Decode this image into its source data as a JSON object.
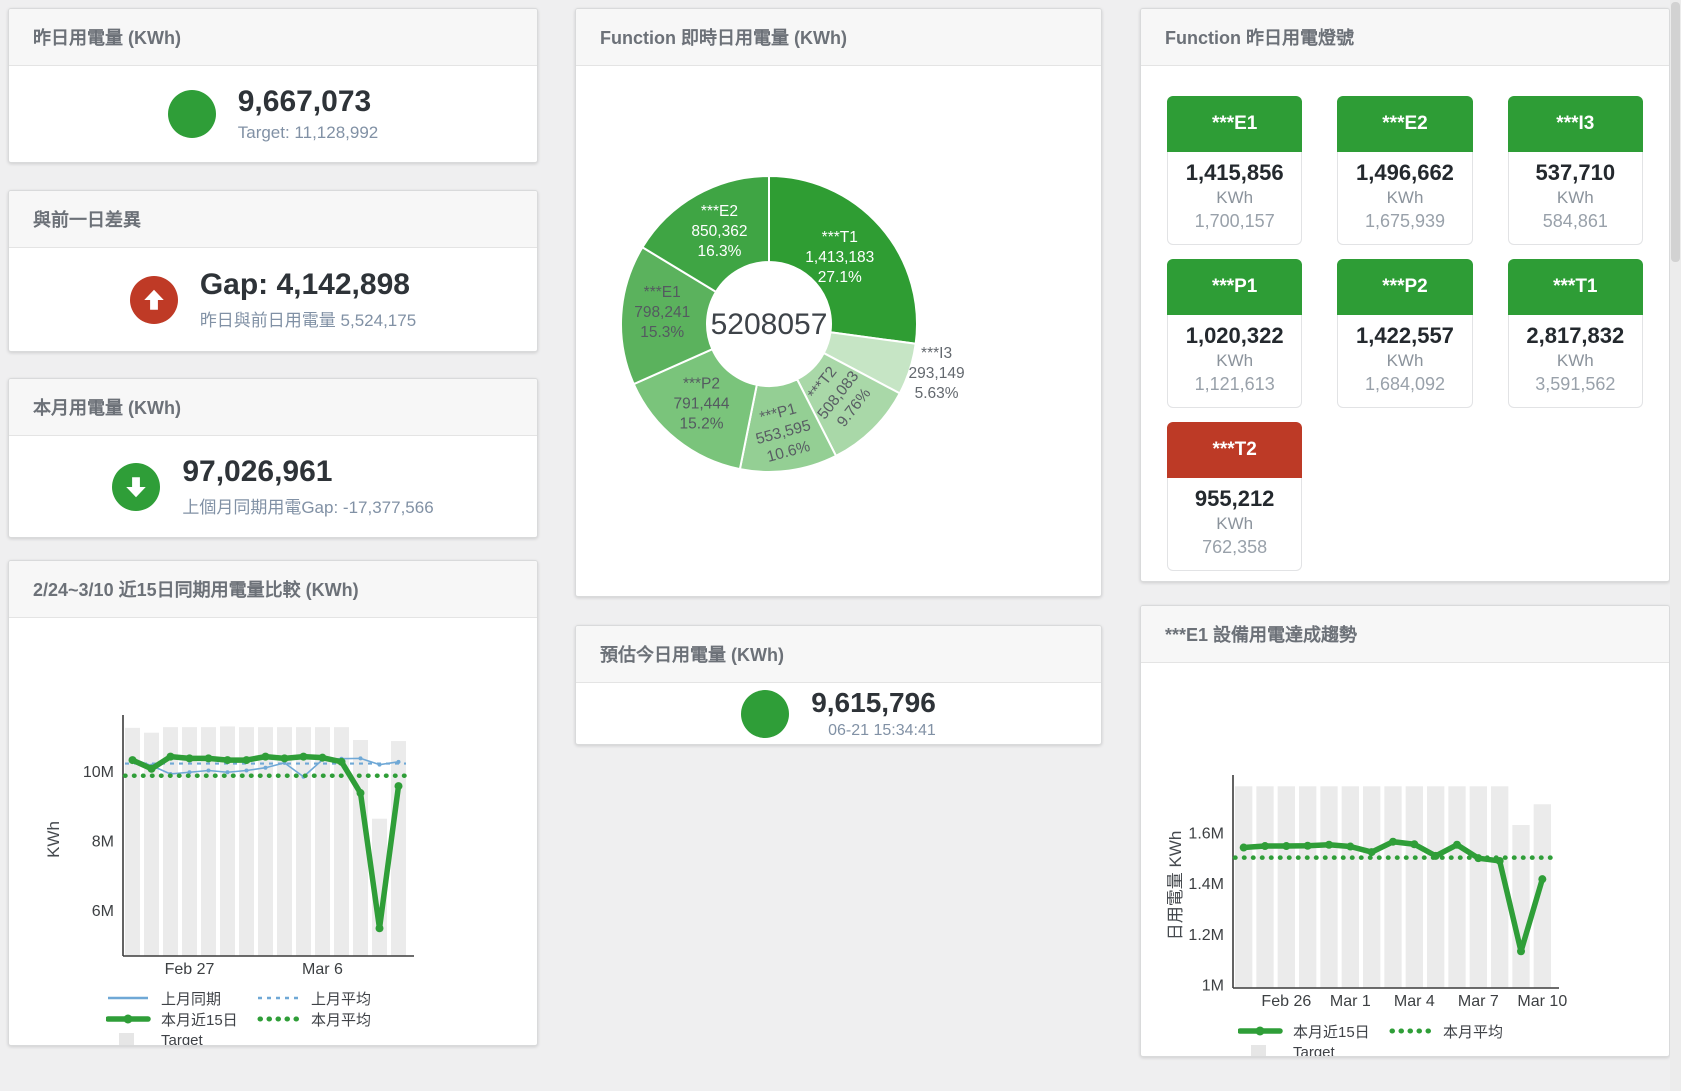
{
  "colors": {
    "green": "#2f9e38",
    "red": "#bf3a26",
    "blue": "#6fa8d6",
    "target_bar": "#ebebeb",
    "legend_square": "#e6e6e6",
    "tile_green": "#2e9d36",
    "tile_red": "#bd3a26",
    "axis_text": "#3d4043"
  },
  "panels": {
    "yesterday": {
      "title": "昨日用電量 (KWh)",
      "value": "9,667,073",
      "target": "Target: 11,128,992"
    },
    "gap": {
      "title": "與前一日差異",
      "value": "Gap: 4,142,898",
      "sub": "昨日與前日用電量 5,524,175",
      "direction": "up"
    },
    "month": {
      "title": "本月用電量 (KWh)",
      "value": "97,026,961",
      "sub": "上個月同期用電Gap: -17,377,566",
      "direction": "down"
    },
    "estimate": {
      "title": "預估今日用電量 (KWh)",
      "value": "9,615,796",
      "sub": "06-21 15:34:41"
    },
    "lights": {
      "title": "Function 昨日用電燈號",
      "tiles": [
        {
          "id": "E1",
          "label": "***E1",
          "value": "1,415,856",
          "unit": "KWh",
          "target": "1,700,157",
          "status": "green"
        },
        {
          "id": "E2",
          "label": "***E2",
          "value": "1,496,662",
          "unit": "KWh",
          "target": "1,675,939",
          "status": "green"
        },
        {
          "id": "I3",
          "label": "***I3",
          "value": "537,710",
          "unit": "KWh",
          "target": "584,861",
          "status": "green"
        },
        {
          "id": "P1",
          "label": "***P1",
          "value": "1,020,322",
          "unit": "KWh",
          "target": "1,121,613",
          "status": "green"
        },
        {
          "id": "P2",
          "label": "***P2",
          "value": "1,422,557",
          "unit": "KWh",
          "target": "1,684,092",
          "status": "green"
        },
        {
          "id": "T1",
          "label": "***T1",
          "value": "2,817,832",
          "unit": "KWh",
          "target": "3,591,562",
          "status": "green"
        },
        {
          "id": "T2",
          "label": "***T2",
          "value": "955,212",
          "unit": "KWh",
          "target": "762,358",
          "status": "red"
        }
      ]
    }
  },
  "chart_data": [
    {
      "type": "pie",
      "title": "Function 即時日用電量 (KWh)",
      "center_total": "5208057",
      "slices": [
        {
          "id": "T1",
          "label": "***T1",
          "value": 1413183,
          "display": "1,413,183",
          "pct": "27.1%",
          "color": "#2f9d33",
          "text": "#ffffff",
          "rot": 0,
          "placement": "inside"
        },
        {
          "id": "I3",
          "label": "***I3",
          "value": 293149,
          "display": "293,149",
          "pct": "5.63%",
          "color": "#c6e5c5",
          "text": "#63686e",
          "rot": 0,
          "placement": "outside"
        },
        {
          "id": "T2",
          "label": "***T2",
          "value": 508083,
          "display": "508,083",
          "pct": "9.76%",
          "color": "#a9d8a8",
          "text": "#585d63",
          "rot": -52,
          "placement": "inside"
        },
        {
          "id": "P1",
          "label": "***P1",
          "value": 553595,
          "display": "553,595",
          "pct": "10.6%",
          "color": "#94cf94",
          "text": "#585d63",
          "rot": -15,
          "placement": "inside"
        },
        {
          "id": "P2",
          "label": "***P2",
          "value": 791444,
          "display": "791,444",
          "pct": "15.2%",
          "color": "#7ac47b",
          "text": "#545a60",
          "rot": 0,
          "placement": "inside"
        },
        {
          "id": "E1",
          "label": "***E1",
          "value": 798241,
          "display": "798,241",
          "pct": "15.3%",
          "color": "#5bb25d",
          "text": "#545a60",
          "rot": 0,
          "placement": "inside"
        },
        {
          "id": "E2",
          "label": "***E2",
          "value": 850362,
          "display": "850,362",
          "pct": "16.3%",
          "color": "#3fa544",
          "text": "#ffffff",
          "rot": 0,
          "placement": "inside"
        }
      ]
    },
    {
      "type": "line",
      "title": "2/24~3/10 近15日同期用電量比較 (KWh)",
      "ylabel": "KWh",
      "y_unit": "M",
      "n": 15,
      "ylim": [
        4.7,
        11.42
      ],
      "yticks": [
        {
          "v": 6,
          "label": "6M"
        },
        {
          "v": 8,
          "label": "8M"
        },
        {
          "v": 10,
          "label": "10M"
        }
      ],
      "xticks": [
        {
          "i": 3,
          "label": "Feb 27"
        },
        {
          "i": 10,
          "label": "Mar 6"
        }
      ],
      "target": [
        11.28,
        11.14,
        11.3,
        11.3,
        11.3,
        11.32,
        11.3,
        11.3,
        11.3,
        11.3,
        11.3,
        11.3,
        10.93,
        8.66,
        10.9
      ],
      "last_month": [
        10.39,
        10.19,
        9.95,
        10.0,
        10.05,
        10.0,
        10.05,
        10.13,
        10.27,
        9.87,
        10.36,
        10.39,
        10.4,
        10.22,
        10.3
      ],
      "last_month_avg": 10.25,
      "this_month": [
        10.35,
        10.1,
        10.45,
        10.4,
        10.4,
        10.35,
        10.35,
        10.45,
        10.4,
        10.45,
        10.42,
        10.3,
        9.4,
        5.5,
        9.6
      ],
      "this_month_avg": 9.9,
      "legend": [
        [
          {
            "label": "上月同期",
            "swatch": "blue-line"
          },
          {
            "label": "上月平均",
            "swatch": "blue-dot"
          }
        ],
        [
          {
            "label": "本月近15日",
            "swatch": "green-thick"
          },
          {
            "label": "本月平均",
            "swatch": "green-dot"
          }
        ],
        [
          {
            "label": "Target",
            "swatch": "gray-square"
          }
        ]
      ]
    },
    {
      "type": "line",
      "title": "***E1 設備用電達成趨勢",
      "ylabel": "日用電量 KWh",
      "y_unit": "M",
      "n": 15,
      "ylim": [
        0.99,
        1.8
      ],
      "yticks": [
        {
          "v": 1,
          "label": "1M"
        },
        {
          "v": 1.2,
          "label": "1.2M"
        },
        {
          "v": 1.4,
          "label": "1.4M"
        },
        {
          "v": 1.6,
          "label": "1.6M"
        }
      ],
      "xticks": [
        {
          "i": 2,
          "label": "Feb 26"
        },
        {
          "i": 5,
          "label": "Mar 1"
        },
        {
          "i": 8,
          "label": "Mar 4"
        },
        {
          "i": 11,
          "label": "Mar 7"
        },
        {
          "i": 14,
          "label": "Mar 10"
        }
      ],
      "target": [
        1.787,
        1.787,
        1.787,
        1.787,
        1.787,
        1.787,
        1.787,
        1.787,
        1.787,
        1.787,
        1.787,
        1.787,
        1.787,
        1.634,
        1.716
      ],
      "this_month": [
        1.545,
        1.551,
        1.551,
        1.552,
        1.556,
        1.549,
        1.527,
        1.568,
        1.558,
        1.512,
        1.556,
        1.503,
        1.492,
        1.135,
        1.42
      ],
      "this_month_avg": 1.505,
      "legend": [
        [
          {
            "label": "本月近15日",
            "swatch": "green-thick"
          },
          {
            "label": "本月平均",
            "swatch": "green-dot"
          }
        ],
        [
          {
            "label": "Target",
            "swatch": "gray-square"
          }
        ]
      ]
    }
  ]
}
